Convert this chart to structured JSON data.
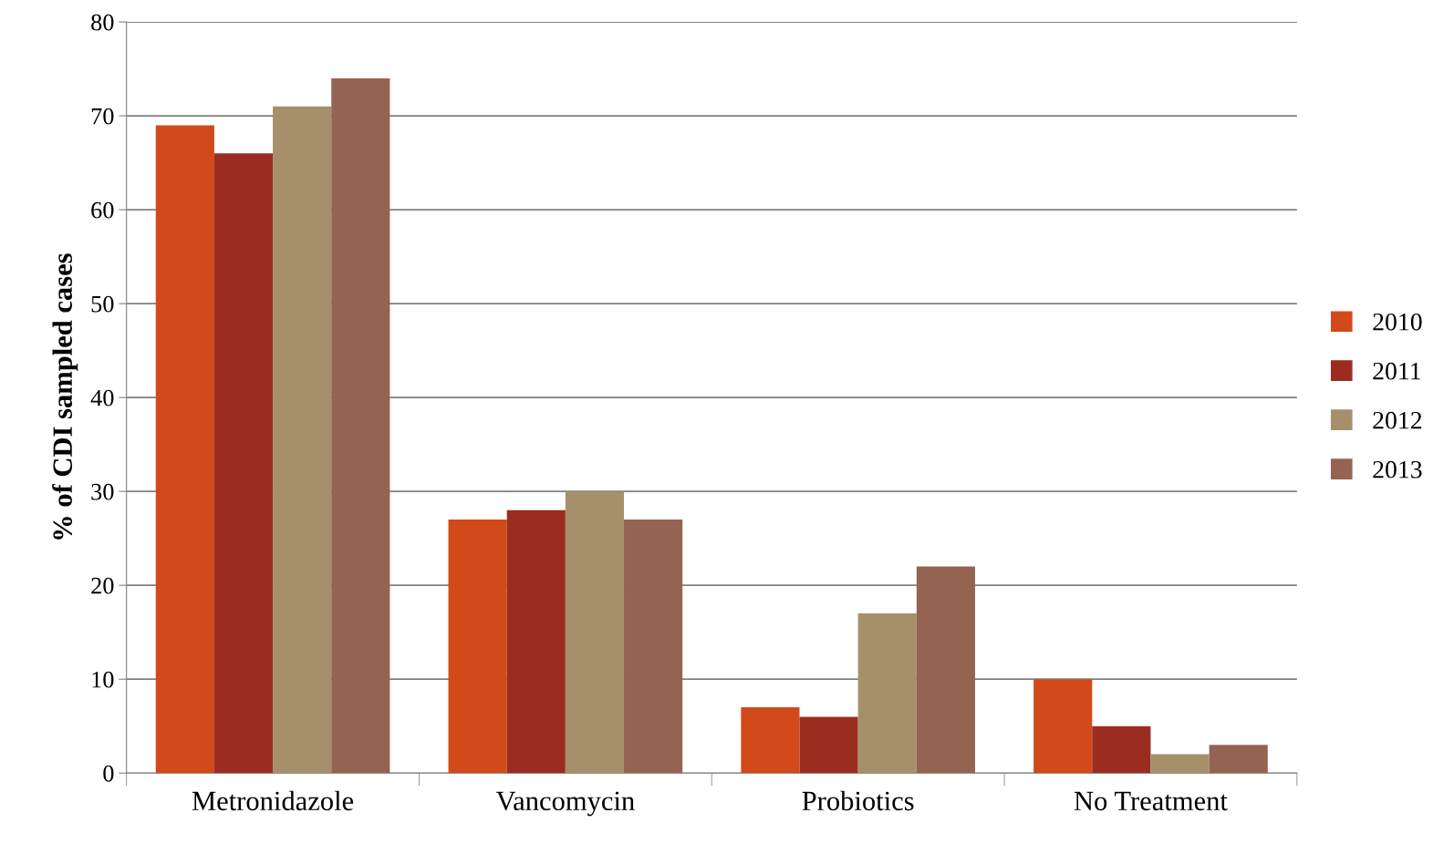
{
  "chart_data": {
    "type": "bar",
    "ylabel": "% of CDI sampled cases",
    "categories": [
      "Metronidazole",
      "Vancomycin",
      "Probiotics",
      "No Treatment"
    ],
    "series": [
      {
        "name": "2010",
        "color": "#d24a1a",
        "values": [
          69,
          27,
          7,
          10
        ]
      },
      {
        "name": "2011",
        "color": "#9b2d20",
        "values": [
          66,
          28,
          6,
          5
        ]
      },
      {
        "name": "2012",
        "color": "#a68f6b",
        "values": [
          71,
          30,
          17,
          2
        ]
      },
      {
        "name": "2013",
        "color": "#956351",
        "values": [
          74,
          27,
          22,
          3
        ]
      }
    ],
    "ylim": [
      0,
      80
    ],
    "yticks": [
      0,
      10,
      20,
      30,
      40,
      50,
      60,
      70,
      80
    ],
    "grid": "y",
    "legend": "right"
  }
}
